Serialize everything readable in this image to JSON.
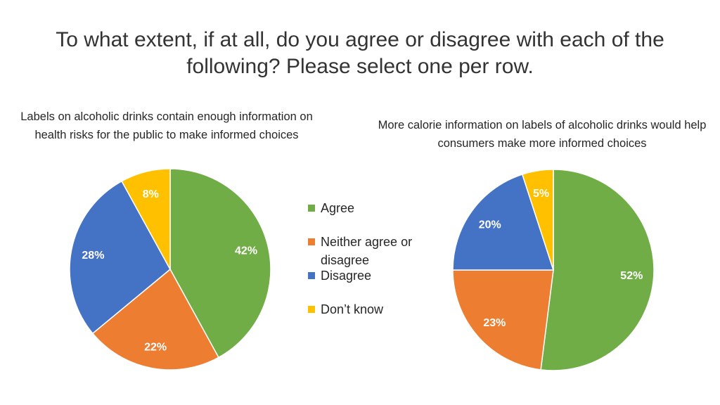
{
  "slide": {
    "title": "To what extent, if at all, do you agree or disagree with each of the following? Please select one per row."
  },
  "colors": {
    "Agree": "#70AD47",
    "Neither agree or disagree": "#ED7D31",
    "Disagree": "#4472C4",
    "Don’t know": "#FFC000"
  },
  "chart_data": [
    {
      "type": "pie",
      "title": "Labels on alcoholic drinks contain enough information on health risks for the public to make informed choices",
      "categories": [
        "Agree",
        "Neither agree or disagree",
        "Disagree",
        "Don’t know"
      ],
      "values": [
        42,
        22,
        28,
        8
      ],
      "data_labels": [
        "42%",
        "22%",
        "28%",
        "8%"
      ],
      "legend_position": "center"
    },
    {
      "type": "pie",
      "title": "More calorie information on labels of alcoholic drinks would help consumers make more informed choices",
      "categories": [
        "Agree",
        "Neither agree or disagree",
        "Disagree",
        "Don’t know"
      ],
      "values": [
        52,
        23,
        20,
        5
      ],
      "data_labels": [
        "52%",
        "23%",
        "20%",
        "5%"
      ],
      "legend_position": "center"
    }
  ],
  "legend": {
    "items": [
      {
        "label": "Agree",
        "color": "#70AD47"
      },
      {
        "label": "Neither agree or disagree",
        "color": "#ED7D31"
      },
      {
        "label": "Disagree",
        "color": "#4472C4"
      },
      {
        "label": "Don’t know",
        "color": "#FFC000"
      }
    ]
  }
}
